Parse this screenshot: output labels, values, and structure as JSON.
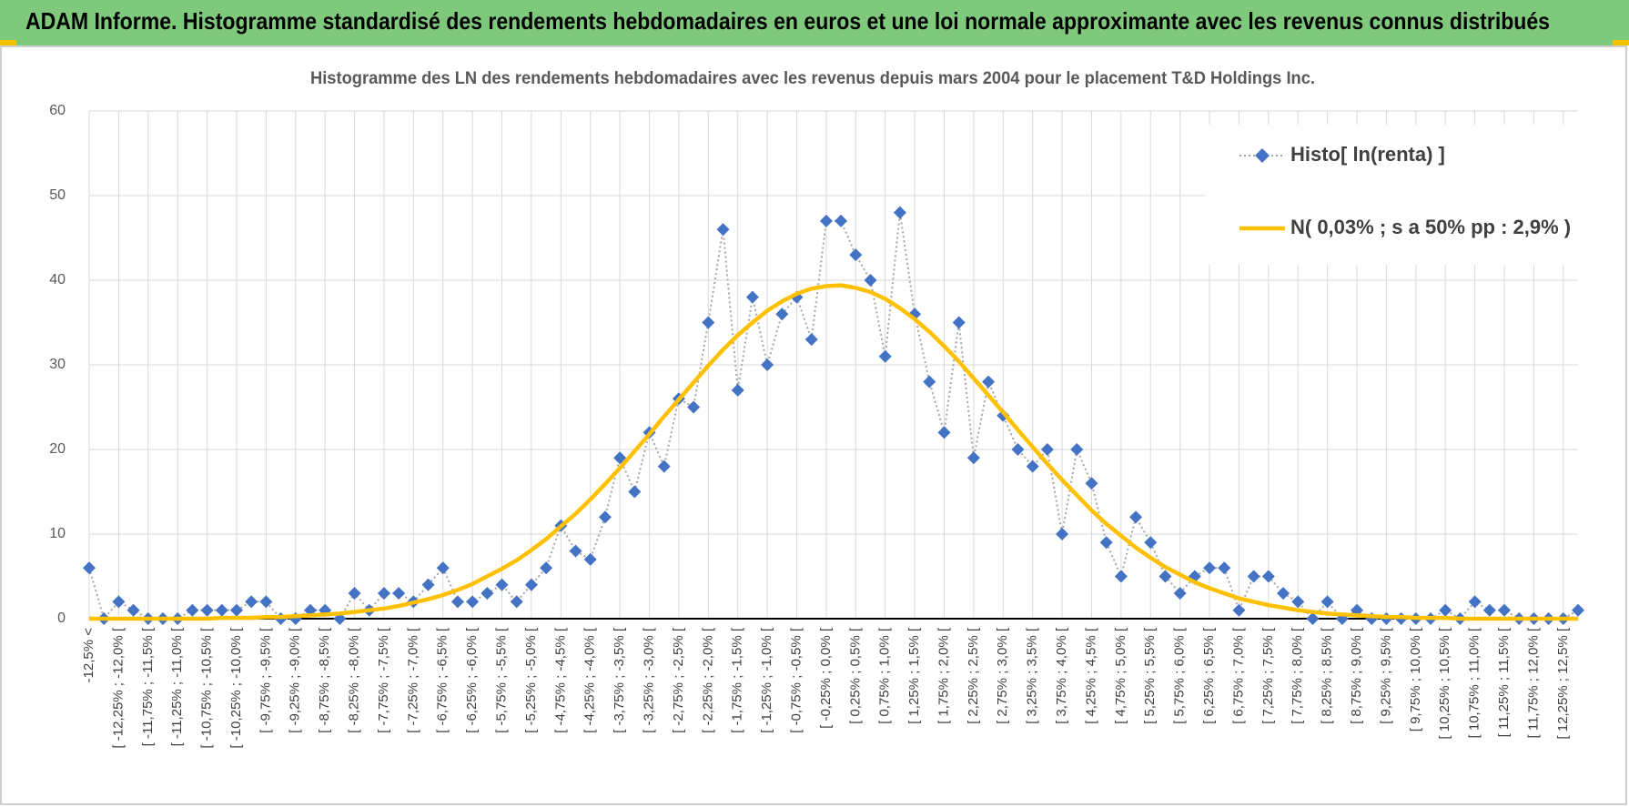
{
  "header": {
    "title": "ADAM Informe. Histogramme standardisé des rendements hebdomadaires en euros et une loi normale approximante avec les revenus connus distribués"
  },
  "chart_data": {
    "type": "line",
    "title": "Histogramme des LN des rendements hebdomadaires avec les revenus depuis mars 2004 pour le placement T&D Holdings Inc.",
    "categories": [
      "-12,5% <",
      null,
      "[ -12,25% ; -12,0% [",
      null,
      "[ -11,75% ; -11,5% [",
      null,
      "[ -11,25% ; -11,0% [",
      null,
      "[ -10,75% ; -10,5% [",
      null,
      "[ -10,25% ; -10,0% [",
      null,
      "[ -9,75% ; -9,5% [",
      null,
      "[ -9,25% ; -9,0% [",
      null,
      "[ -8,75% ; -8,5% [",
      null,
      "[ -8,25% ; -8,0% [",
      null,
      "[ -7,75% ; -7,5% [",
      null,
      "[ -7,25% ; -7,0% [",
      null,
      "[ -6,75% ; -6,5% [",
      null,
      "[ -6,25% ; -6,0% [",
      null,
      "[ -5,75% ; -5,5% [",
      null,
      "[ -5,25% ; -5,0% [",
      null,
      "[ -4,75% ; -4,5% [",
      null,
      "[ -4,25% ; -4,0% [",
      null,
      "[ -3,75% ; -3,5% [",
      null,
      "[ -3,25% ; -3,0% [",
      null,
      "[ -2,75% ; -2,5% [",
      null,
      "[ -2,25% ; -2,0% [",
      null,
      "[ -1,75% ; -1,5% [",
      null,
      "[ -1,25% ; -1,0% [",
      null,
      "[ -0,75% ; -0,5% [",
      null,
      "[ -0,25% ; 0,0% [",
      null,
      "[ 0,25% ; 0,5% [",
      null,
      "[ 0,75% ; 1,0% [",
      null,
      "[ 1,25% ; 1,5% [",
      null,
      "[ 1,75% ; 2,0% [",
      null,
      "[ 2,25% ; 2,5% [",
      null,
      "[ 2,75% ; 3,0% [",
      null,
      "[ 3,25% ; 3,5% [",
      null,
      "[ 3,75% ; 4,0% [",
      null,
      "[ 4,25% ; 4,5% [",
      null,
      "[ 4,75% ; 5,0% [",
      null,
      "[ 5,25% ; 5,5% [",
      null,
      "[ 5,75% ; 6,0% [",
      null,
      "[ 6,25% ; 6,5% [",
      null,
      "[ 6,75% ; 7,0% [",
      null,
      "[ 7,25% ; 7,5% [",
      null,
      "[ 7,75% ; 8,0% [",
      null,
      "[ 8,25% ; 8,5% [",
      null,
      "[ 8,75% ; 9,0% [",
      null,
      "[ 9,25% ; 9,5% [",
      null,
      "[ 9,75% ; 10,0% [",
      null,
      "[ 10,25% ; 10,5% [",
      null,
      "[ 10,75% ; 11,0% [",
      null,
      "[ 11,25% ; 11,5% [",
      null,
      "[ 11,75% ; 12,0% [",
      null,
      "[ 12,25% ; 12,5% [",
      null
    ],
    "series": [
      {
        "name": "Histo[ ln(renta) ]",
        "color": "#4472c4",
        "style": "dotted-markers",
        "values": [
          6,
          0,
          2,
          1,
          0,
          0,
          0,
          1,
          1,
          1,
          1,
          2,
          2,
          0,
          0,
          1,
          1,
          0,
          3,
          1,
          3,
          3,
          2,
          4,
          6,
          2,
          2,
          3,
          4,
          2,
          4,
          6,
          11,
          8,
          7,
          12,
          19,
          15,
          22,
          18,
          26,
          25,
          35,
          46,
          27,
          38,
          30,
          36,
          38,
          33,
          47,
          47,
          43,
          40,
          31,
          48,
          36,
          28,
          22,
          35,
          19,
          28,
          24,
          20,
          18,
          20,
          10,
          20,
          16,
          9,
          5,
          12,
          9,
          5,
          3,
          5,
          6,
          6,
          1,
          5,
          5,
          3,
          2,
          0,
          2,
          0,
          1,
          0,
          0,
          0,
          0,
          0,
          1,
          0,
          2,
          1,
          1,
          0,
          0,
          0,
          0,
          1
        ]
      },
      {
        "name": "N( 0,03% ; s a 50% pp : 2,9% )",
        "color": "#ffc000",
        "style": "solid",
        "values": [
          0,
          0,
          0,
          0,
          0,
          0,
          0,
          0,
          0,
          0.1,
          0.1,
          0.1,
          0.2,
          0.2,
          0.3,
          0.4,
          0.5,
          0.6,
          0.8,
          1.0,
          1.2,
          1.5,
          1.9,
          2.3,
          2.8,
          3.4,
          4.1,
          5.0,
          5.9,
          6.9,
          8.1,
          9.4,
          10.9,
          12.4,
          14.1,
          15.9,
          17.8,
          19.8,
          21.8,
          23.9,
          25.9,
          27.9,
          29.9,
          31.8,
          33.5,
          35.0,
          36.4,
          37.5,
          38.4,
          39.0,
          39.3,
          39.4,
          39.1,
          38.6,
          37.8,
          36.7,
          35.4,
          33.9,
          32.2,
          30.4,
          28.4,
          26.4,
          24.4,
          22.3,
          20.3,
          18.3,
          16.4,
          14.6,
          12.8,
          11.2,
          9.8,
          8.4,
          7.2,
          6.1,
          5.2,
          4.3,
          3.6,
          3.0,
          2.4,
          2.0,
          1.6,
          1.3,
          1.0,
          0.8,
          0.6,
          0.5,
          0.4,
          0.3,
          0.2,
          0.2,
          0.1,
          0.1,
          0.1,
          0,
          0,
          0,
          0,
          0,
          0,
          0,
          0,
          0
        ]
      }
    ],
    "ylim": [
      0,
      60
    ],
    "yticks": [
      0,
      10,
      20,
      30,
      40,
      50,
      60
    ],
    "grid": true,
    "legend": "top-right"
  }
}
